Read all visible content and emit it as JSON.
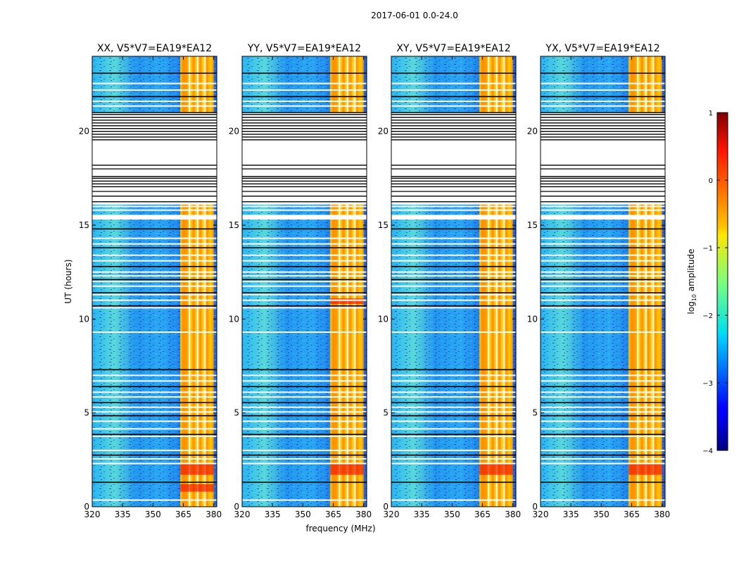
{
  "suptitle": "2017-06-01 0.0-24.0",
  "chart_data": {
    "type": "heatmap",
    "title": "2017-06-01 0.0-24.0",
    "xlabel": "frequency (MHz)",
    "ylabel": "UT (hours)",
    "xlim": [
      320,
      381.5
    ],
    "ylim": [
      0,
      24
    ],
    "xticks": [
      320,
      335,
      350,
      365,
      380
    ],
    "yticks": [
      0,
      5,
      10,
      15,
      20
    ],
    "panels": [
      {
        "title": "XX, V5*V7=EA19*EA12",
        "band_mhz": [
          363.5,
          380
        ],
        "bright_rows": [
          [
            1.7,
            2.3
          ],
          [
            0.8,
            1.2
          ]
        ]
      },
      {
        "title": "YY, V5*V7=EA19*EA12",
        "band_mhz": [
          363.5,
          380
        ],
        "bright_rows": [
          [
            1.7,
            2.3
          ],
          [
            10.8,
            11.1
          ]
        ]
      },
      {
        "title": "XY, V5*V7=EA19*EA12",
        "band_mhz": [
          363.5,
          380
        ],
        "bright_rows": [
          [
            1.7,
            2.3
          ]
        ]
      },
      {
        "title": "YX, V5*V7=EA19*EA12",
        "band_mhz": [
          363.5,
          380
        ],
        "bright_rows": [
          [
            1.7,
            2.3
          ]
        ]
      }
    ],
    "flagged_rows_hours": [
      0.35,
      1.3,
      2.3,
      2.55,
      2.75,
      3.0,
      3.75,
      3.85,
      4.15,
      4.55,
      4.85,
      5.05,
      5.3,
      5.55,
      5.85,
      6.1,
      6.4,
      6.7,
      7.0,
      7.3,
      9.3,
      10.6,
      10.7,
      11.0,
      11.3,
      11.4,
      11.75,
      12.0,
      12.1,
      12.3,
      12.5,
      12.8,
      13.1,
      13.4,
      13.8,
      14.0,
      14.3,
      14.8,
      15.8,
      16.0,
      21.0,
      21.35,
      21.6,
      21.85,
      22.2,
      22.55,
      23.1
    ],
    "gap_hours": [
      [
        16.1,
        21.0
      ],
      [
        15.3,
        15.55
      ]
    ],
    "gap_lines_hours": [
      16.25,
      16.55,
      16.8,
      17.05,
      17.2,
      17.35,
      17.5,
      17.6,
      18.0,
      18.2,
      19.55,
      19.7,
      19.85,
      20.0,
      20.15,
      20.3,
      20.45,
      20.6,
      20.75,
      20.9
    ],
    "colorbar": {
      "label_main": "log",
      "label_sub": "10",
      "label_rest": " amplitude",
      "range": [
        -4,
        1
      ],
      "ticks": [
        "−4",
        "−3",
        "−2",
        "−1",
        "0",
        "1"
      ],
      "tick_values": [
        -4,
        -3,
        -2,
        -1,
        0,
        1
      ],
      "colormap": "jet"
    }
  }
}
